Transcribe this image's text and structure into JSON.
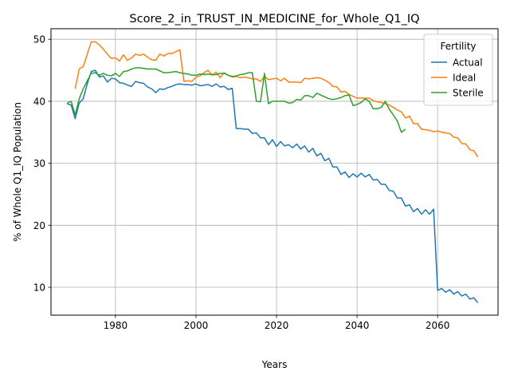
{
  "chart_data": {
    "type": "line",
    "title": "Score_2_in_TRUST_IN_MEDICINE_for_Whole_Q1_IQ",
    "xlabel": "Years",
    "ylabel": "% of Whole Q1_IQ Population",
    "xlim": [
      1964,
      2075
    ],
    "ylim": [
      5.5,
      51.7
    ],
    "xticks": [
      "1980",
      "2000",
      "2020",
      "2040",
      "2060"
    ],
    "yticks": [
      "10",
      "20",
      "30",
      "40",
      "50"
    ],
    "grid": true,
    "legend": {
      "title": "Fertility",
      "position": "top-right"
    },
    "series": [
      {
        "name": "Actual",
        "color": "#1f77b4",
        "x": [
          1968,
          1969,
          1970,
          1971,
          1972,
          1973,
          1974,
          1975,
          1976,
          1977,
          1978,
          1979,
          1980,
          1981,
          1982,
          1983,
          1984,
          1985,
          1986,
          1987,
          1988,
          1989,
          1990,
          1991,
          1992,
          1993,
          1994,
          1995,
          1996,
          1997,
          1998,
          1999,
          2000,
          2001,
          2002,
          2003,
          2004,
          2005,
          2006,
          2007,
          2008,
          2009,
          2010,
          2011,
          2012,
          2013,
          2014,
          2015,
          2016,
          2017,
          2018,
          2019,
          2020,
          2021,
          2022,
          2023,
          2024,
          2025,
          2026,
          2027,
          2028,
          2029,
          2030,
          2031,
          2032,
          2033,
          2034,
          2035,
          2036,
          2037,
          2038,
          2039,
          2040,
          2041,
          2042,
          2043,
          2044,
          2045,
          2046,
          2047,
          2048,
          2049,
          2050,
          2051,
          2052,
          2053,
          2054,
          2055,
          2056,
          2057,
          2058,
          2059,
          2060,
          2061,
          2062,
          2063,
          2064,
          2065,
          2066,
          2067,
          2068,
          2069,
          2070
        ],
        "y": [
          39.6,
          39.4,
          37.2,
          39.7,
          40.4,
          42.8,
          44.8,
          45.0,
          43.9,
          44.1,
          43.1,
          43.7,
          43.6,
          43.0,
          42.9,
          42.6,
          42.4,
          43.2,
          43.0,
          42.9,
          42.3,
          42.0,
          41.4,
          42.0,
          41.9,
          42.2,
          42.4,
          42.7,
          42.8,
          42.7,
          42.7,
          42.6,
          42.8,
          42.5,
          42.6,
          42.7,
          42.4,
          42.8,
          42.3,
          42.4,
          41.9,
          42.1,
          35.6,
          35.6,
          35.5,
          35.5,
          34.8,
          34.9,
          34.1,
          34.1,
          33.0,
          33.8,
          32.7,
          33.5,
          32.8,
          33.0,
          32.5,
          33.1,
          32.3,
          32.8,
          31.8,
          32.4,
          31.2,
          31.6,
          30.4,
          30.8,
          29.4,
          29.4,
          28.2,
          28.6,
          27.7,
          28.3,
          27.8,
          28.4,
          27.8,
          28.2,
          27.3,
          27.4,
          26.6,
          26.6,
          25.6,
          25.5,
          24.4,
          24.4,
          23.1,
          23.3,
          22.2,
          22.7,
          21.8,
          22.5,
          21.8,
          22.6,
          9.5,
          9.8,
          9.2,
          9.6,
          8.9,
          9.3,
          8.6,
          8.9,
          8.1,
          8.3,
          7.5
        ]
      },
      {
        "name": "Ideal",
        "color": "#ff7f0e",
        "x": [
          1970,
          1971,
          1972,
          1973,
          1974,
          1975,
          1976,
          1977,
          1978,
          1979,
          1980,
          1981,
          1982,
          1983,
          1984,
          1985,
          1986,
          1987,
          1988,
          1989,
          1990,
          1991,
          1992,
          1993,
          1994,
          1995,
          1996,
          1997,
          1998,
          1999,
          2000,
          2001,
          2002,
          2003,
          2004,
          2005,
          2006,
          2007,
          2008,
          2009,
          2010,
          2011,
          2012,
          2013,
          2014,
          2015,
          2016,
          2017,
          2018,
          2019,
          2020,
          2021,
          2022,
          2023,
          2024,
          2025,
          2026,
          2027,
          2028,
          2029,
          2030,
          2031,
          2032,
          2033,
          2034,
          2035,
          2036,
          2037,
          2038,
          2039,
          2040,
          2041,
          2042,
          2043,
          2044,
          2045,
          2046,
          2047,
          2048,
          2049,
          2050,
          2051,
          2052,
          2053,
          2054,
          2055,
          2056,
          2057,
          2058,
          2059,
          2060,
          2061,
          2062,
          2063,
          2064,
          2065,
          2066,
          2067,
          2068,
          2069,
          2070
        ],
        "y": [
          42.0,
          45.2,
          45.6,
          47.6,
          49.6,
          49.6,
          49.1,
          48.4,
          47.6,
          46.9,
          47.0,
          46.5,
          47.5,
          46.6,
          47.0,
          47.6,
          47.4,
          47.6,
          47.1,
          46.7,
          46.6,
          47.6,
          47.3,
          47.7,
          47.7,
          48.0,
          48.3,
          43.2,
          43.3,
          43.2,
          43.9,
          44.1,
          44.6,
          45.0,
          44.2,
          44.7,
          43.8,
          44.6,
          44.2,
          43.9,
          44.0,
          43.8,
          43.9,
          43.8,
          43.6,
          43.6,
          43.2,
          44.0,
          43.5,
          43.6,
          43.7,
          43.3,
          43.7,
          43.1,
          43.1,
          43.1,
          43.0,
          43.7,
          43.6,
          43.7,
          43.8,
          43.7,
          43.4,
          43.0,
          42.4,
          42.3,
          41.5,
          41.6,
          41.1,
          40.8,
          40.5,
          40.5,
          40.5,
          40.5,
          40.1,
          39.9,
          39.8,
          39.6,
          39.4,
          39.0,
          38.6,
          38.3,
          37.3,
          37.6,
          36.4,
          36.4,
          35.5,
          35.4,
          35.3,
          35.1,
          35.2,
          35.0,
          34.9,
          34.8,
          34.2,
          34.1,
          33.2,
          33.1,
          32.2,
          32.0,
          31.0
        ]
      },
      {
        "name": "Sterile",
        "color": "#2ca02c",
        "x": [
          1968,
          1969,
          1970,
          1971,
          1972,
          1973,
          1974,
          1975,
          1976,
          1977,
          1978,
          1979,
          1980,
          1981,
          1982,
          1983,
          1984,
          1985,
          1986,
          1987,
          1988,
          1989,
          1990,
          1991,
          1992,
          1993,
          1994,
          1995,
          1996,
          1997,
          1998,
          1999,
          2000,
          2001,
          2002,
          2003,
          2004,
          2005,
          2006,
          2007,
          2008,
          2009,
          2010,
          2011,
          2012,
          2013,
          2014,
          2015,
          2016,
          2017,
          2018,
          2019,
          2020,
          2021,
          2022,
          2023,
          2024,
          2025,
          2026,
          2027,
          2028,
          2029,
          2030,
          2031,
          2032,
          2033,
          2034,
          2035,
          2036,
          2037,
          2038,
          2039,
          2040,
          2041,
          2042,
          2043,
          2044,
          2045,
          2046,
          2047,
          2048,
          2049,
          2050,
          2051,
          2052
        ],
        "y": [
          39.7,
          40.0,
          37.8,
          40.4,
          42.0,
          43.3,
          44.5,
          44.6,
          44.2,
          44.5,
          44.2,
          44.1,
          44.5,
          44.0,
          44.8,
          44.9,
          45.2,
          45.4,
          45.4,
          45.3,
          45.2,
          45.2,
          45.2,
          44.9,
          44.6,
          44.6,
          44.7,
          44.8,
          44.6,
          44.5,
          44.4,
          44.2,
          44.2,
          44.4,
          44.3,
          44.4,
          44.3,
          44.3,
          44.5,
          44.5,
          44.2,
          44.0,
          44.1,
          44.3,
          44.4,
          44.6,
          44.6,
          40.0,
          39.9,
          44.5,
          39.6,
          40.0,
          40.0,
          40.0,
          40.0,
          39.7,
          39.8,
          40.3,
          40.2,
          40.9,
          40.9,
          40.6,
          41.3,
          41.0,
          40.7,
          40.4,
          40.3,
          40.4,
          40.6,
          40.9,
          41.0,
          39.3,
          39.5,
          39.8,
          40.4,
          40.0,
          38.8,
          38.8,
          39.0,
          40.0,
          38.7,
          37.8,
          36.8,
          35.0,
          35.5
        ]
      }
    ]
  }
}
